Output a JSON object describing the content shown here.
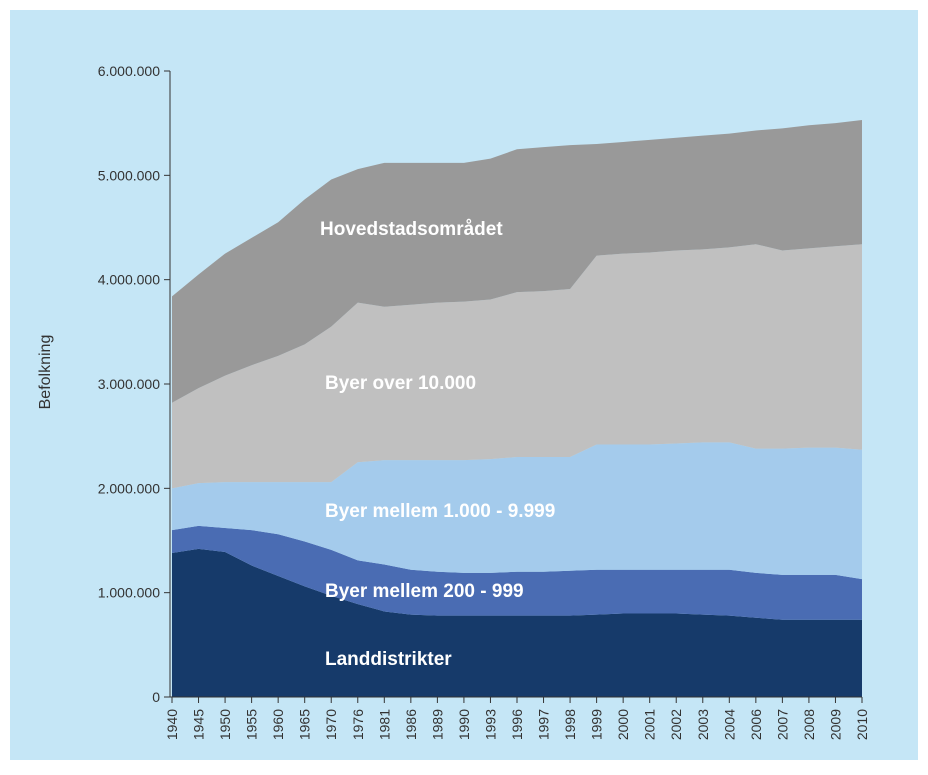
{
  "chart_data": {
    "type": "stacked_area",
    "y_label": "Befolkning",
    "categories": [
      "1940",
      "1945",
      "1950",
      "1955",
      "1960",
      "1965",
      "1970",
      "1976",
      "1981",
      "1986",
      "1989",
      "1990",
      "1993",
      "1996",
      "1997",
      "1998",
      "1999",
      "2000",
      "2001",
      "2002",
      "2003",
      "2004",
      "2006",
      "2007",
      "2008",
      "2009",
      "2010"
    ],
    "series": [
      {
        "name": "Landdistrikter",
        "color": "#163a6a",
        "values": [
          1380000,
          1420000,
          1390000,
          1260000,
          1160000,
          1060000,
          970000,
          890000,
          820000,
          790000,
          780000,
          780000,
          780000,
          780000,
          780000,
          780000,
          790000,
          800000,
          800000,
          800000,
          790000,
          780000,
          760000,
          740000,
          740000,
          740000,
          740000
        ]
      },
      {
        "name": "Byer mellem 200 - 999",
        "color": "#4a6cb3",
        "values": [
          220000,
          220000,
          230000,
          340000,
          400000,
          430000,
          440000,
          420000,
          450000,
          430000,
          420000,
          410000,
          410000,
          420000,
          420000,
          430000,
          430000,
          420000,
          420000,
          420000,
          430000,
          440000,
          430000,
          430000,
          430000,
          430000,
          390000
        ]
      },
      {
        "name": "Byer mellem 1.000 - 9.999",
        "color": "#a4cbec",
        "values": [
          400000,
          410000,
          440000,
          460000,
          500000,
          570000,
          650000,
          940000,
          1000000,
          1050000,
          1070000,
          1080000,
          1090000,
          1100000,
          1100000,
          1090000,
          1200000,
          1200000,
          1200000,
          1210000,
          1220000,
          1220000,
          1190000,
          1210000,
          1220000,
          1220000,
          1240000
        ]
      },
      {
        "name": "Byer over 10.000",
        "color": "#c0c0c0",
        "values": [
          820000,
          910000,
          1020000,
          1120000,
          1210000,
          1320000,
          1490000,
          1530000,
          1470000,
          1490000,
          1510000,
          1520000,
          1530000,
          1580000,
          1590000,
          1610000,
          1810000,
          1830000,
          1840000,
          1850000,
          1850000,
          1870000,
          1960000,
          1900000,
          1910000,
          1930000,
          1970000
        ]
      },
      {
        "name": "Hovedstadsområdet",
        "color": "#999999",
        "values": [
          1020000,
          1090000,
          1170000,
          1220000,
          1280000,
          1390000,
          1410000,
          1280000,
          1380000,
          1360000,
          1340000,
          1330000,
          1350000,
          1370000,
          1380000,
          1380000,
          1070000,
          1070000,
          1080000,
          1080000,
          1090000,
          1090000,
          1090000,
          1170000,
          1180000,
          1180000,
          1190000
        ]
      }
    ],
    "ylim": [
      0,
      6000000
    ],
    "yticks": [
      0,
      {
        "value": 1000000,
        "label": "1.000.000"
      },
      {
        "value": 2000000,
        "label": "2.000.000"
      },
      {
        "value": 3000000,
        "label": "3.000.000"
      },
      {
        "value": 4000000,
        "label": "4.000.000"
      },
      {
        "value": 5000000,
        "label": "5.000.000"
      },
      {
        "value": 6000000,
        "label": "6.000.000"
      }
    ]
  }
}
